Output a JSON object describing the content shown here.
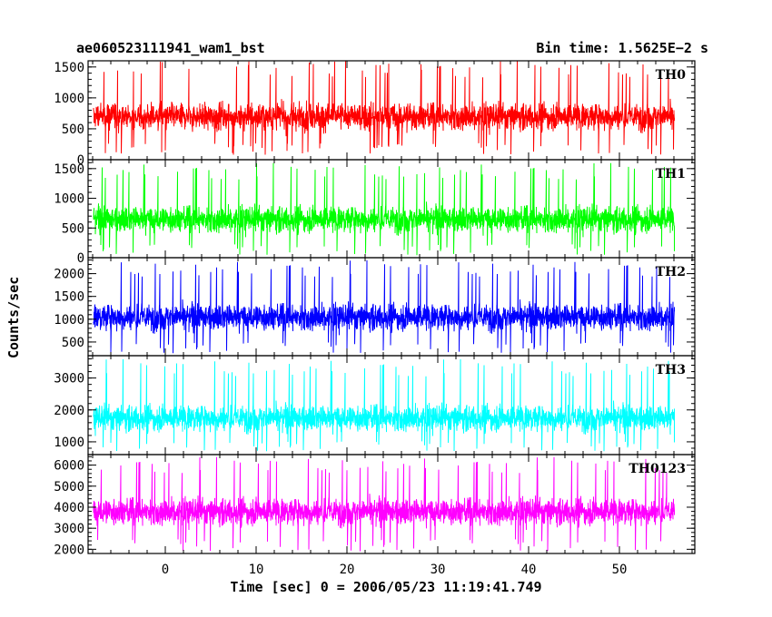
{
  "header": {
    "title": "ae060523111941_wam1_bst",
    "bin_time": "Bin time: 1.5625E−2 s"
  },
  "chart_data": {
    "type": "line",
    "xlabel": "Time [sec] 0 = 2006/05/23 11:19:41.749",
    "ylabel": "Counts/sec",
    "xlim": [
      -8.5,
      58.3
    ],
    "x_range_data": [
      -7.9,
      56.1
    ],
    "x_ticks": [
      0,
      10,
      20,
      30,
      40,
      50
    ],
    "x_tick_labels": [
      "0",
      "10",
      "20",
      "30",
      "40",
      "50"
    ],
    "x_minor_step": 2,
    "panels": [
      {
        "name": "TH0",
        "color": "#ff0000",
        "ylim": [
          0,
          1600
        ],
        "y_ticks": [
          0,
          500,
          1000,
          1500
        ],
        "y_tick_labels": [
          "0",
          "500",
          "1000",
          "1500"
        ],
        "y_minor_step": 100,
        "mean": 700,
        "min": 80,
        "max": 1600
      },
      {
        "name": "TH1",
        "color": "#00ff00",
        "ylim": [
          0,
          1650
        ],
        "y_ticks": [
          0,
          500,
          1000,
          1500
        ],
        "y_tick_labels": [
          "0",
          "500",
          "1000",
          "1500"
        ],
        "y_minor_step": 100,
        "mean": 650,
        "min": 40,
        "max": 1600
      },
      {
        "name": "TH2",
        "color": "#0000ff",
        "ylim": [
          200,
          2350
        ],
        "y_ticks": [
          500,
          1000,
          1500,
          2000
        ],
        "y_tick_labels": [
          "500",
          "1000",
          "1500",
          "2000"
        ],
        "y_minor_step": 100,
        "mean": 1050,
        "min": 250,
        "max": 2300
      },
      {
        "name": "TH3",
        "color": "#00ffff",
        "ylim": [
          600,
          3700
        ],
        "y_ticks": [
          1000,
          2000,
          3000
        ],
        "y_tick_labels": [
          "1000",
          "2000",
          "3000"
        ],
        "y_minor_step": 200,
        "mean": 1750,
        "min": 700,
        "max": 3600
      },
      {
        "name": "TH0123",
        "color": "#ff00ff",
        "ylim": [
          1800,
          6500
        ],
        "y_ticks": [
          2000,
          3000,
          4000,
          5000,
          6000
        ],
        "y_tick_labels": [
          "2000",
          "3000",
          "4000",
          "5000",
          "6000"
        ],
        "y_minor_step": 200,
        "mean": 3800,
        "min": 1900,
        "max": 6400
      }
    ]
  }
}
